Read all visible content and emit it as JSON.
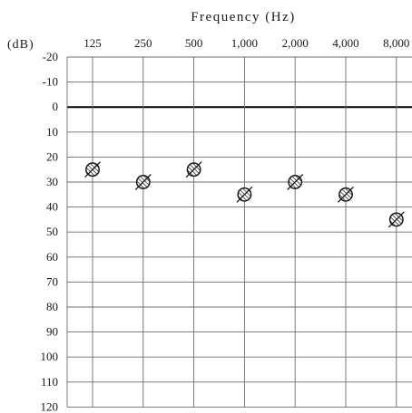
{
  "chart_data": {
    "type": "scatter",
    "title": "Frequency (Hz)",
    "ylabel": "(dB)",
    "categories": [
      "125",
      "250",
      "500",
      "1,000",
      "2,000",
      "4,000",
      "8,000"
    ],
    "y_ticks": [
      "-20",
      "-10",
      "0",
      "10",
      "20",
      "30",
      "40",
      "50",
      "60",
      "70",
      "80",
      "90",
      "100",
      "110",
      "120"
    ],
    "ylim": [
      -20,
      120
    ],
    "y_inverted": true,
    "grid": true,
    "reference_line": 0,
    "series": [
      {
        "values": [
          25,
          30,
          25,
          35,
          30,
          35,
          45
        ],
        "marker": "hatched-circle",
        "color": "#1a1a1a"
      }
    ]
  }
}
